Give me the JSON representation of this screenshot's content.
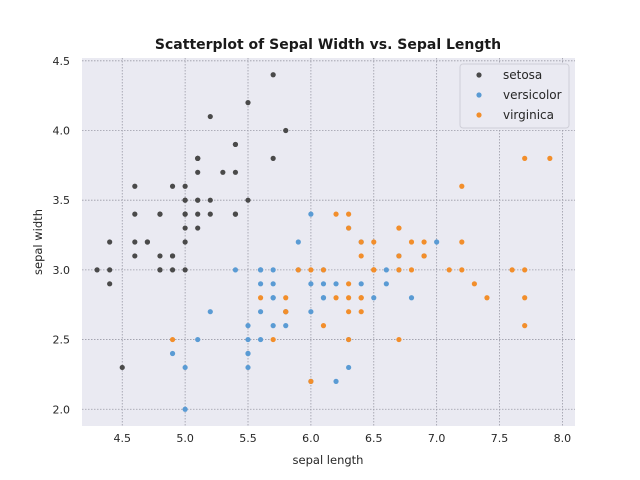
{
  "chart_data": {
    "type": "scatter",
    "title": "Scatterplot of Sepal Width vs. Sepal Length",
    "xlabel": "sepal length",
    "ylabel": "sepal width",
    "xlim": [
      4.18,
      8.1
    ],
    "ylim": [
      1.88,
      4.52
    ],
    "xticks": [
      4.5,
      5.0,
      5.5,
      6.0,
      6.5,
      7.0,
      7.5,
      8.0
    ],
    "xtick_labels": [
      "4.5",
      "5.0",
      "5.5",
      "6.0",
      "6.5",
      "7.0",
      "7.5",
      "8.0"
    ],
    "yticks": [
      2.0,
      2.5,
      3.0,
      3.5,
      4.0,
      4.5
    ],
    "ytick_labels": [
      "2.0",
      "2.5",
      "3.0",
      "3.5",
      "4.0",
      "4.5"
    ],
    "grid": true,
    "legend_position": "top-right",
    "series": [
      {
        "name": "setosa",
        "color": "#4a4a4a",
        "x": [
          5.1,
          4.9,
          4.7,
          4.6,
          5.0,
          5.4,
          4.6,
          5.0,
          4.4,
          4.9,
          5.4,
          4.8,
          4.8,
          4.3,
          5.8,
          5.7,
          5.4,
          5.1,
          5.7,
          5.1,
          5.4,
          5.1,
          4.6,
          5.1,
          4.8,
          5.0,
          5.0,
          5.2,
          5.2,
          4.7,
          4.8,
          5.4,
          5.2,
          5.5,
          4.9,
          5.0,
          5.5,
          4.9,
          4.4,
          5.1,
          5.0,
          4.5,
          4.4,
          5.0,
          5.1,
          4.8,
          5.1,
          4.6,
          5.3,
          5.0
        ],
        "y": [
          3.5,
          3.0,
          3.2,
          3.1,
          3.6,
          3.9,
          3.4,
          3.4,
          2.9,
          3.1,
          3.7,
          3.4,
          3.0,
          3.0,
          4.0,
          4.4,
          3.9,
          3.5,
          3.8,
          3.8,
          3.4,
          3.7,
          3.6,
          3.3,
          3.4,
          3.0,
          3.4,
          3.5,
          3.4,
          3.2,
          3.1,
          3.4,
          4.1,
          4.2,
          3.1,
          3.2,
          3.5,
          3.6,
          3.0,
          3.4,
          3.5,
          2.3,
          3.2,
          3.5,
          3.8,
          3.0,
          3.8,
          3.2,
          3.7,
          3.3
        ]
      },
      {
        "name": "versicolor",
        "color": "#5a9bd4",
        "x": [
          7.0,
          6.4,
          6.9,
          5.5,
          6.5,
          5.7,
          6.3,
          4.9,
          6.6,
          5.2,
          5.0,
          5.9,
          6.0,
          6.1,
          5.6,
          6.7,
          5.6,
          5.8,
          6.2,
          5.6,
          5.9,
          6.1,
          6.3,
          6.1,
          6.4,
          6.6,
          6.8,
          6.7,
          6.0,
          5.7,
          5.5,
          5.5,
          5.8,
          6.0,
          5.4,
          6.0,
          6.7,
          6.3,
          5.6,
          5.5,
          5.5,
          6.1,
          5.8,
          5.0,
          5.6,
          5.7,
          5.7,
          6.2,
          5.1,
          5.7
        ],
        "y": [
          3.2,
          3.2,
          3.1,
          2.3,
          2.8,
          2.8,
          3.3,
          2.4,
          2.9,
          2.7,
          2.0,
          3.0,
          2.2,
          2.9,
          2.9,
          3.1,
          3.0,
          2.7,
          2.2,
          2.5,
          3.2,
          2.8,
          2.5,
          2.8,
          2.9,
          3.0,
          2.8,
          3.0,
          2.9,
          2.6,
          2.4,
          2.4,
          2.7,
          2.7,
          3.0,
          3.4,
          3.1,
          2.3,
          3.0,
          2.5,
          2.6,
          3.0,
          2.6,
          2.3,
          2.7,
          3.0,
          2.9,
          2.9,
          2.5,
          2.8
        ]
      },
      {
        "name": "virginica",
        "color": "#f28e2b",
        "x": [
          6.3,
          5.8,
          7.1,
          6.3,
          6.5,
          7.6,
          4.9,
          7.3,
          6.7,
          7.2,
          6.5,
          6.4,
          6.8,
          5.7,
          5.8,
          6.4,
          6.5,
          7.7,
          7.7,
          6.0,
          6.9,
          5.6,
          7.7,
          6.3,
          6.7,
          7.2,
          6.2,
          6.1,
          6.4,
          7.2,
          7.4,
          7.9,
          6.4,
          6.3,
          6.1,
          7.7,
          6.3,
          6.4,
          6.0,
          6.9,
          6.7,
          6.9,
          5.8,
          6.8,
          6.7,
          6.7,
          6.3,
          6.5,
          6.2,
          5.9
        ],
        "y": [
          3.3,
          2.7,
          3.0,
          2.9,
          3.0,
          3.0,
          2.5,
          2.9,
          2.5,
          3.6,
          3.2,
          2.7,
          3.0,
          2.5,
          2.8,
          3.2,
          3.0,
          3.8,
          2.6,
          2.2,
          3.2,
          2.8,
          2.8,
          2.7,
          3.3,
          3.2,
          2.8,
          3.0,
          2.8,
          3.0,
          2.8,
          3.8,
          2.8,
          2.8,
          2.6,
          3.0,
          3.4,
          3.1,
          3.0,
          3.1,
          3.1,
          3.1,
          2.7,
          3.2,
          3.3,
          3.0,
          2.5,
          3.0,
          3.4,
          3.0
        ]
      }
    ]
  }
}
